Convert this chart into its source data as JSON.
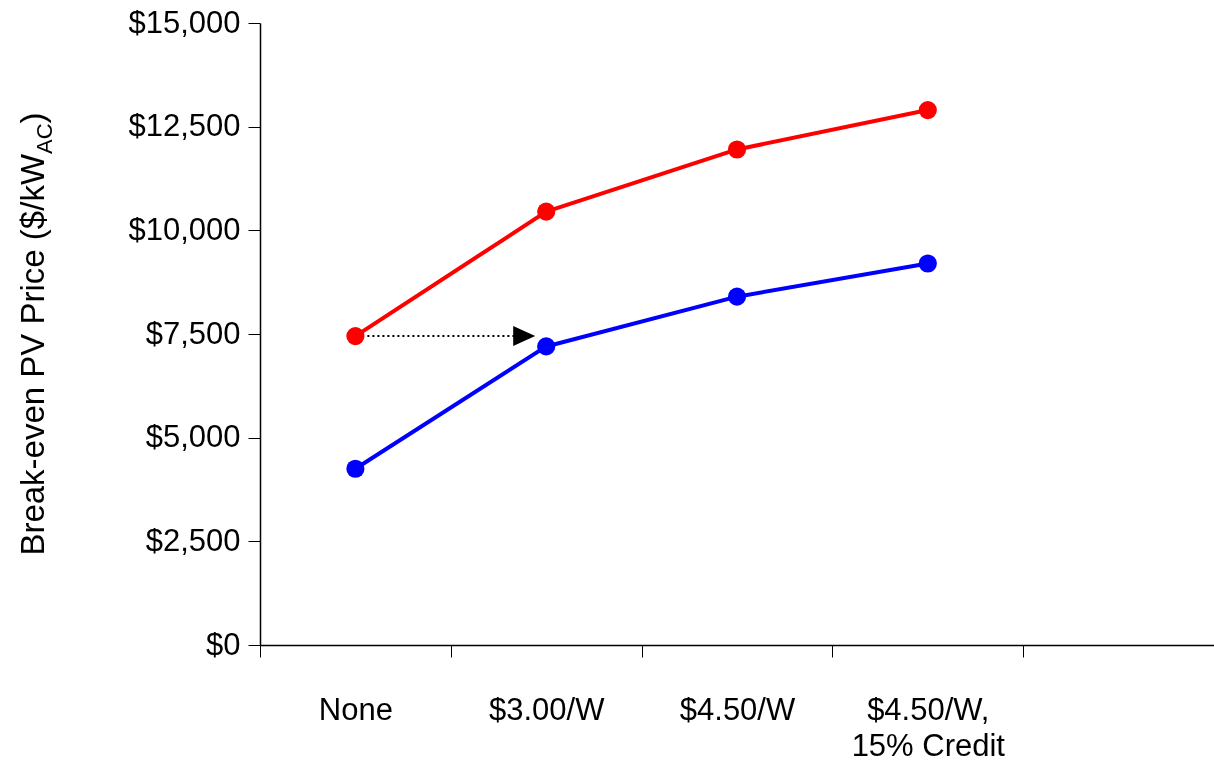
{
  "chart_data": {
    "type": "line",
    "ylabel": "Break-even PV Price ($/kW$_{AC}$)",
    "categories": [
      "None",
      "$3.00/W",
      "$4.50/W",
      "$4.50/W, 15% Credit",
      null
    ],
    "series": [
      {
        "color": "#ff0000",
        "values": [
          7450,
          10450,
          11950,
          12900,
          null
        ]
      },
      {
        "color": "#0000ff",
        "values": [
          4250,
          7200,
          8400,
          9200,
          null
        ]
      }
    ],
    "ylim": [
      0,
      15000
    ],
    "yticks": [
      {
        "value": 0,
        "label": "$0"
      },
      {
        "value": 2500,
        "label": "$2,500"
      },
      {
        "value": 5000,
        "label": "$5,000"
      },
      {
        "value": 7500,
        "label": "$7,500"
      },
      {
        "value": 10000,
        "label": "$10,000"
      },
      {
        "value": 12500,
        "label": "$12,500"
      },
      {
        "value": 15000,
        "label": "$15,000"
      }
    ],
    "grid": false,
    "legend": false,
    "marker": "circle",
    "line_style": "solid"
  }
}
